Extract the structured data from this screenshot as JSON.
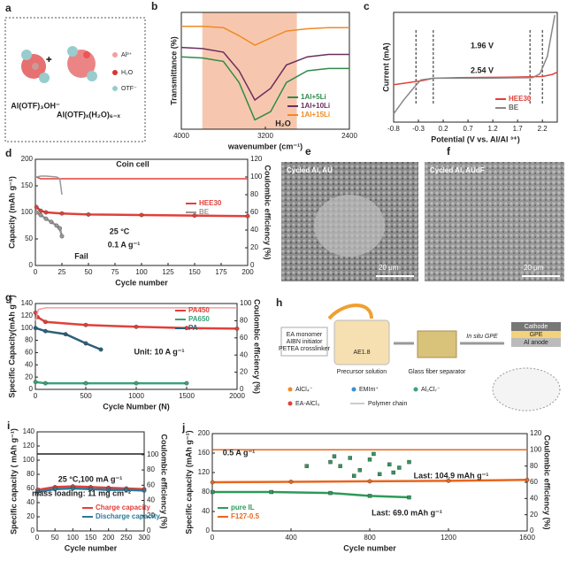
{
  "figures": {
    "a": {
      "label": "a",
      "species": [
        "Al³⁺",
        "H₂O",
        "OTF⁻"
      ],
      "left": "Al(OTF)₃OH⁻",
      "right": "Al(OTF)ₓ(H₂O)₆₋ₓ"
    },
    "e": {
      "label": "e",
      "title": "Cycled Al, AU",
      "scale": "20 μm"
    },
    "f": {
      "label": "f",
      "title": "Cycled Al, AUdF",
      "scale": "20 μm"
    },
    "h": {
      "label": "h",
      "inputs": [
        "EA monomer",
        "AIBN initiator",
        "PETEA crosslinker"
      ],
      "beaker": "AE1.8",
      "steps": [
        "Precursor solution",
        "Glass fiber separator",
        "In situ GPE"
      ],
      "layers": [
        "Cathode",
        "GPE",
        "Al anode"
      ],
      "legend": [
        "AlCl₄⁻",
        "EMIm⁺",
        "Al₂Cl₇⁻",
        "EA-AlCl₃",
        "Polymer chain"
      ]
    }
  },
  "chart_data": [
    {
      "type": "line",
      "label": "b",
      "xlabel": "wavenumber (cm⁻¹)",
      "ylabel": "Transmittance (%)",
      "xlim": [
        4000,
        2400
      ],
      "xticks": [
        4000,
        3200,
        2400
      ],
      "ylim": [
        0,
        100
      ],
      "shaded_range": [
        3800,
        2900
      ],
      "legend": "lower right",
      "annotations": [
        "H₂O"
      ],
      "series": [
        {
          "name": "1Al+5Li",
          "color": "#2e8b4a",
          "x": [
            4000,
            3800,
            3600,
            3450,
            3300,
            3150,
            3000,
            2800,
            2600,
            2400
          ],
          "values": [
            62,
            61,
            58,
            40,
            8,
            15,
            40,
            50,
            52,
            52
          ]
        },
        {
          "name": "1Al+10Li",
          "color": "#6b2f5f",
          "x": [
            4000,
            3800,
            3600,
            3450,
            3300,
            3150,
            3000,
            2800,
            2600,
            2400
          ],
          "values": [
            70,
            69,
            66,
            50,
            25,
            35,
            55,
            62,
            64,
            64
          ]
        },
        {
          "name": "1Al+15Li",
          "color": "#f08a24",
          "x": [
            4000,
            3800,
            3600,
            3450,
            3300,
            3150,
            3000,
            2800,
            2600,
            2400
          ],
          "values": [
            88,
            88,
            87,
            80,
            72,
            78,
            84,
            86,
            87,
            87
          ]
        }
      ]
    },
    {
      "type": "line",
      "label": "c",
      "xlabel": "Potential (V vs. Al/Al ³⁺)",
      "ylabel": "Current (mA)",
      "xlim": [
        -0.8,
        2.5
      ],
      "xticks": [
        -0.8,
        -0.3,
        0.2,
        0.7,
        1.2,
        1.7,
        2.2
      ],
      "ylim": [
        -8,
        12
      ],
      "reference_lines": [
        -0.35,
        0.0,
        1.95,
        2.2
      ],
      "legend": "lower right",
      "annotations": [
        "1.96 V",
        "2.54 V"
      ],
      "series": [
        {
          "name": "HEE30",
          "color": "#e0413a",
          "x": [
            -0.8,
            -0.5,
            -0.2,
            0,
            0.5,
            1.5,
            2.2,
            2.4,
            2.5
          ],
          "values": [
            -1.2,
            -0.8,
            -0.4,
            0,
            0.1,
            0.2,
            0.3,
            0.7,
            1.1
          ]
        },
        {
          "name": "BE",
          "color": "#888888",
          "x": [
            -0.8,
            -0.6,
            -0.4,
            -0.25,
            0,
            1,
            2,
            2.15,
            2.3,
            2.45
          ],
          "values": [
            -6.5,
            -4,
            -1.8,
            -0.3,
            0,
            0,
            0.1,
            0.8,
            4,
            11.5
          ]
        }
      ]
    },
    {
      "type": "line",
      "label": "d",
      "xlabel": "Cycle number",
      "ylabel": "Capacity (mAh g⁻¹)",
      "y2label": "Coulombic efficiency (%)",
      "xlim": [
        0,
        200
      ],
      "xticks": [
        0,
        25,
        50,
        75,
        100,
        125,
        150,
        175,
        200
      ],
      "ylim": [
        0,
        200
      ],
      "yticks": [
        0,
        50,
        100,
        150,
        200
      ],
      "y2lim": [
        0,
        120
      ],
      "y2ticks": [
        0,
        20,
        40,
        60,
        80,
        100,
        120
      ],
      "legend": "center right",
      "annotations": [
        "Coin cell",
        "25 °C",
        "0.1 A g⁻¹",
        "Fail"
      ],
      "series": [
        {
          "name": "HEE30",
          "color": "#e0413a",
          "marker": "circle",
          "x": [
            1,
            5,
            10,
            25,
            50,
            100,
            150,
            200
          ],
          "values": [
            110,
            103,
            100,
            98,
            96,
            95,
            94,
            93
          ]
        },
        {
          "name": "BE",
          "color": "#999999",
          "marker": "circle",
          "x": [
            1,
            5,
            10,
            15,
            20,
            23,
            25
          ],
          "values": [
            100,
            95,
            88,
            82,
            75,
            70,
            55
          ]
        },
        {
          "color": "#e0413a",
          "axis": "y2",
          "x": [
            1,
            5,
            50,
            100,
            150,
            200
          ],
          "values": [
            100,
            98,
            98,
            98,
            98,
            98
          ]
        },
        {
          "color": "#999999",
          "axis": "y2",
          "x": [
            1,
            5,
            10,
            20,
            23,
            25
          ],
          "values": [
            100,
            101,
            101,
            100,
            98,
            80
          ]
        }
      ]
    },
    {
      "type": "line",
      "label": "g",
      "xlabel": "Cycle Number (N)",
      "ylabel": "Specific Capacity(mAh g⁻¹)",
      "y2label": "Coulombic efficiency (%)",
      "xlim": [
        0,
        2000
      ],
      "xticks": [
        0,
        500,
        1000,
        1500,
        2000
      ],
      "ylim": [
        0,
        140
      ],
      "yticks": [
        0,
        20,
        40,
        60,
        80,
        100,
        120,
        140
      ],
      "y2lim": [
        0,
        100
      ],
      "y2ticks": [
        0,
        20,
        40,
        60,
        80,
        100
      ],
      "legend": "upper right",
      "annotations": [
        "Unit: 10 A g⁻¹"
      ],
      "series": [
        {
          "name": "PA450",
          "color": "#e0413a",
          "marker": "circle",
          "x": [
            1,
            20,
            100,
            500,
            1000,
            1500,
            2000
          ],
          "values": [
            125,
            118,
            110,
            105,
            102,
            100,
            99
          ]
        },
        {
          "name": "PA650",
          "color": "#3aa37a",
          "marker": "circle",
          "x": [
            1,
            100,
            500,
            1000,
            1500
          ],
          "values": [
            12,
            10,
            10,
            10,
            10
          ]
        },
        {
          "name": "PA",
          "color": "#2c5f7a",
          "marker": "circle",
          "x": [
            1,
            100,
            300,
            500,
            650
          ],
          "values": [
            100,
            95,
            90,
            75,
            65
          ]
        },
        {
          "color": "#f0a0a0",
          "axis": "y2",
          "x": [
            1,
            30,
            100,
            2000
          ],
          "values": [
            80,
            93,
            95,
            95
          ]
        }
      ]
    },
    {
      "type": "line",
      "label": "i",
      "xlabel": "Cycle number",
      "ylabel": "Specific capacity ( mAh g⁻¹)",
      "y2label": "Coulombic efficiency (%)",
      "xlim": [
        0,
        300
      ],
      "xticks": [
        0,
        50,
        100,
        150,
        200,
        250,
        300
      ],
      "ylim": [
        0,
        140
      ],
      "yticks": [
        0,
        20,
        40,
        60,
        80,
        100,
        120,
        140
      ],
      "y2lim": [
        0,
        130
      ],
      "y2ticks": [
        0,
        20,
        40,
        60,
        80,
        100
      ],
      "legend": "lower right",
      "annotations": [
        "25 °C,100 mA g⁻¹",
        "mass loading: 11 mg cm⁻²"
      ],
      "series": [
        {
          "name": "Charge capacity",
          "color": "#e0413a",
          "marker": "circle",
          "x": [
            1,
            50,
            100,
            150,
            200,
            250,
            300
          ],
          "values": [
            58,
            62,
            63,
            62,
            61,
            60,
            59
          ]
        },
        {
          "name": "Discharge capacity",
          "color": "#2c7a9a",
          "marker": "circle",
          "x": [
            1,
            50,
            100,
            150,
            200,
            250,
            300
          ],
          "values": [
            55,
            59,
            60,
            59,
            58,
            58,
            57
          ]
        },
        {
          "color": "#222222",
          "axis": "y2",
          "x": [
            1,
            50,
            100,
            150,
            200,
            250,
            300
          ],
          "values": [
            101,
            101,
            101,
            101,
            101,
            101,
            101
          ]
        }
      ]
    },
    {
      "type": "line",
      "label": "j",
      "xlabel": "Cycle number",
      "ylabel": "Specific capacity (mAh g⁻¹)",
      "y2label": "Coulombic efficiency (%)",
      "xlim": [
        0,
        1600
      ],
      "xticks": [
        0,
        400,
        800,
        1200,
        1600
      ],
      "ylim": [
        0,
        200
      ],
      "yticks": [
        0,
        40,
        80,
        120,
        160,
        200
      ],
      "y2lim": [
        0,
        120
      ],
      "y2ticks": [
        0,
        20,
        40,
        60,
        80,
        100,
        120
      ],
      "legend": "lower left",
      "annotations": [
        "0.5 A g⁻¹",
        "Last: 104.9 mAh g⁻¹",
        "Last: 69.0 mAh g⁻¹"
      ],
      "series": [
        {
          "name": "pure IL",
          "color": "#2e9a5a",
          "marker": "square",
          "x": [
            1,
            300,
            600,
            800,
            1000
          ],
          "values": [
            80,
            80,
            78,
            72,
            69
          ]
        },
        {
          "name": "F127-0.5",
          "color": "#e8661e",
          "marker": "circle",
          "x": [
            1,
            400,
            800,
            1200,
            1600
          ],
          "values": [
            100,
            101,
            102,
            103,
            104.9
          ]
        },
        {
          "color": "#e8661e",
          "axis": "y2",
          "x": [
            1,
            400,
            800,
            1200,
            1600
          ],
          "values": [
            100,
            100,
            100,
            100,
            100
          ]
        },
        {
          "color": "#2e9a5a",
          "axis": "y2",
          "marker": "square",
          "line": false,
          "x": [
            480,
            600,
            620,
            650,
            700,
            720,
            750,
            800,
            820,
            850,
            900,
            920,
            950,
            1000
          ],
          "values": [
            80,
            85,
            92,
            80,
            90,
            68,
            75,
            88,
            95,
            70,
            82,
            72,
            78,
            85
          ]
        }
      ]
    }
  ]
}
